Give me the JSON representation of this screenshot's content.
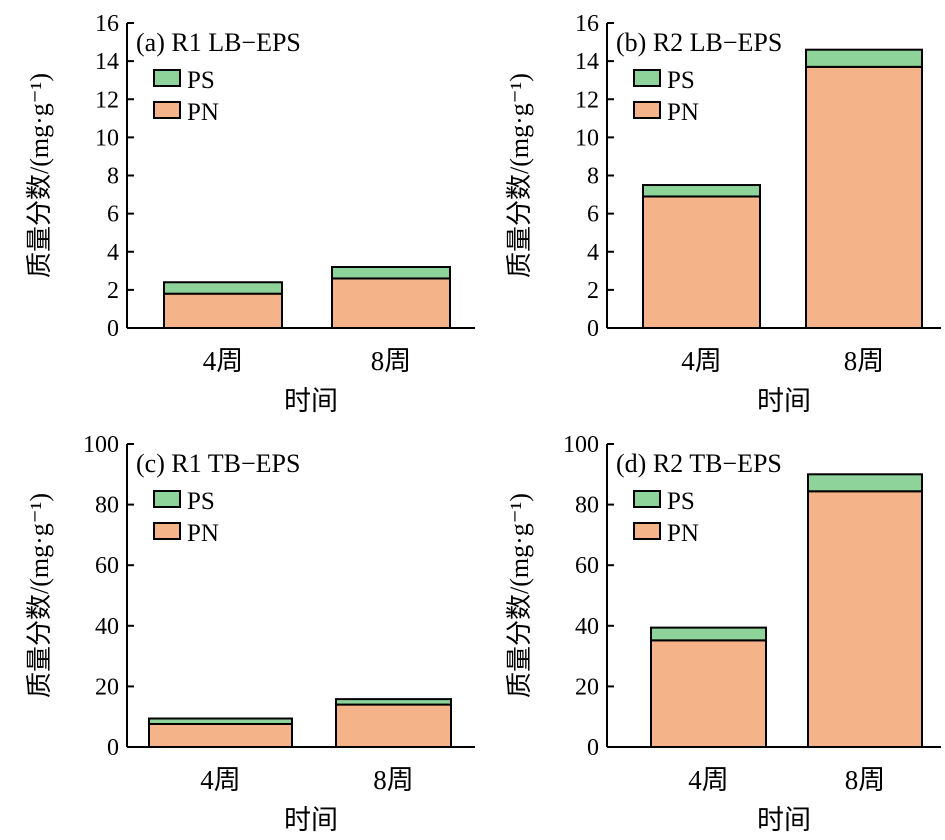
{
  "colors": {
    "ps": "#8ed49a",
    "pn": "#f5b38a",
    "stroke": "#000000"
  },
  "chart_data": [
    {
      "type": "bar",
      "stacked": true,
      "title": "(a) R1 LB−EPS",
      "categories": [
        "4周",
        "8周"
      ],
      "series": [
        {
          "name": "PN",
          "values": [
            1.8,
            2.6
          ]
        },
        {
          "name": "PS",
          "values": [
            0.6,
            0.6
          ]
        }
      ],
      "xlabel": "时间",
      "ylabel": "质量分数/(mg·g⁻¹)",
      "ylim": [
        0,
        16
      ],
      "yticks": [
        0,
        2,
        4,
        6,
        8,
        10,
        12,
        14,
        16
      ],
      "grid": false,
      "legend": "top-left"
    },
    {
      "type": "bar",
      "stacked": true,
      "title": "(b) R2 LB−EPS",
      "categories": [
        "4周",
        "8周"
      ],
      "series": [
        {
          "name": "PN",
          "values": [
            6.9,
            13.7
          ]
        },
        {
          "name": "PS",
          "values": [
            0.6,
            0.9
          ]
        }
      ],
      "xlabel": "时间",
      "ylabel": "质量分数/(mg·g⁻¹)",
      "ylim": [
        0,
        16
      ],
      "yticks": [
        0,
        2,
        4,
        6,
        8,
        10,
        12,
        14,
        16
      ],
      "grid": false,
      "legend": "top-left"
    },
    {
      "type": "bar",
      "stacked": true,
      "title": "(c) R1 TB−EPS",
      "categories": [
        "4周",
        "8周"
      ],
      "series": [
        {
          "name": "PN",
          "values": [
            7.6,
            14.0
          ]
        },
        {
          "name": "PS",
          "values": [
            1.8,
            1.8
          ]
        }
      ],
      "xlabel": "时间",
      "ylabel": "质量分数/(mg·g⁻¹)",
      "ylim": [
        0,
        100
      ],
      "yticks": [
        0,
        20,
        40,
        60,
        80,
        100
      ],
      "grid": false,
      "legend": "top-left"
    },
    {
      "type": "bar",
      "stacked": true,
      "title": "(d) R2 TB−EPS",
      "categories": [
        "4周",
        "8周"
      ],
      "series": [
        {
          "name": "PN",
          "values": [
            35.2,
            84.4
          ]
        },
        {
          "name": "PS",
          "values": [
            4.2,
            5.6
          ]
        }
      ],
      "xlabel": "时间",
      "ylabel": "质量分数/(mg·g⁻¹)",
      "ylim": [
        0,
        100
      ],
      "yticks": [
        0,
        20,
        40,
        60,
        80,
        100
      ],
      "grid": false,
      "legend": "top-left"
    }
  ]
}
